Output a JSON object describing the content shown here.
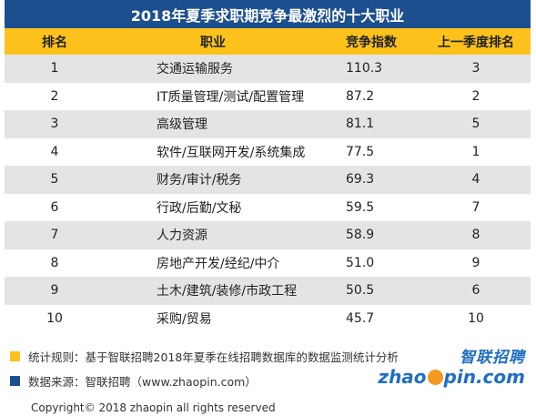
{
  "title": "2018年夏季求职期竞争最激烈的十大职业",
  "colors": {
    "title_bg": "#1c4f8e",
    "header_bg": "#fcc21b",
    "row_alt": "#e4e4e4",
    "note_yellow": "#fcc21b",
    "note_blue": "#1c4f8e",
    "logo_blue": "#1f6fc2",
    "logo_orange": "#f39a1e"
  },
  "chart_data": {
    "type": "table",
    "title": "2018年夏季求职期竞争最激烈的十大职业",
    "columns": [
      "排名",
      "职业",
      "竞争指数",
      "上一季度排名"
    ],
    "rows": [
      {
        "rank": "1",
        "job": "交通运输服务",
        "score": "110.3",
        "prev": "3"
      },
      {
        "rank": "2",
        "job": "IT质量管理/测试/配置管理",
        "score": "87.2",
        "prev": "2"
      },
      {
        "rank": "3",
        "job": "高级管理",
        "score": "81.1",
        "prev": "5"
      },
      {
        "rank": "4",
        "job": "软件/互联网开发/系统集成",
        "score": "77.5",
        "prev": "1"
      },
      {
        "rank": "5",
        "job": "财务/审计/税务",
        "score": "69.3",
        "prev": "4"
      },
      {
        "rank": "6",
        "job": "行政/后勤/文秘",
        "score": "59.5",
        "prev": "7"
      },
      {
        "rank": "7",
        "job": "人力资源",
        "score": "58.9",
        "prev": "8"
      },
      {
        "rank": "8",
        "job": "房地产开发/经纪/中介",
        "score": "51.0",
        "prev": "9"
      },
      {
        "rank": "9",
        "job": "土木/建筑/装修/市政工程",
        "score": "50.5",
        "prev": "6"
      },
      {
        "rank": "10",
        "job": "采购/贸易",
        "score": "45.7",
        "prev": "10"
      }
    ]
  },
  "notes": {
    "rule": "统计规则：基于智联招聘2018年夏季在线招聘数据库的数据监测统计分析",
    "source": "数据来源：智联招聘（www.zhaopin.com）"
  },
  "logo": {
    "cn": "智联招聘",
    "en_left": "zhao",
    "en_right": "pin.com"
  },
  "copyright": "Copyright© 2018 zhaopin all rights reserved"
}
